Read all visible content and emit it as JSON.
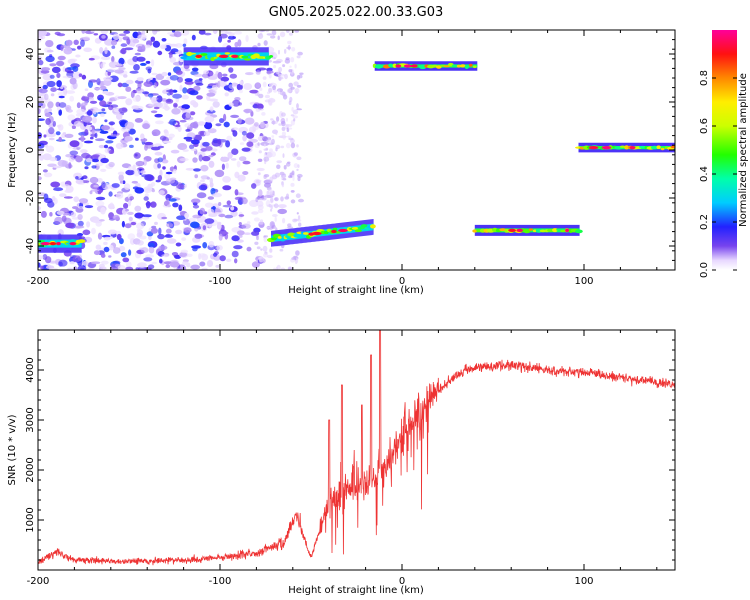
{
  "chart_data": [
    {
      "type": "heatmap",
      "title": "GN05.2025.022.00.33.G03",
      "xlabel": "Height of straight line (km)",
      "ylabel": "Frequency (Hz)",
      "xlim": [
        -200,
        150
      ],
      "ylim": [
        -50,
        50
      ],
      "x_ticks": [
        -200,
        -100,
        0,
        100
      ],
      "y_ticks": [
        -40,
        -20,
        0,
        20,
        40
      ],
      "colorbar": {
        "label": "Normalized spectral amplitude",
        "range": [
          0,
          1
        ],
        "ticks": [
          "0.0",
          "0.2",
          "0.4",
          "0.6",
          "0.8"
        ],
        "colormap": "rainbow (white-purple-blue-cyan-green-yellow-red-magenta)"
      },
      "features": [
        {
          "kind": "noise",
          "x": [
            -200,
            -65
          ],
          "freq": [
            -50,
            50
          ]
        },
        {
          "kind": "band",
          "x": [
            -120,
            -72
          ],
          "freq": [
            36,
            42
          ]
        },
        {
          "kind": "band",
          "x": [
            -200,
            -175
          ],
          "freq": [
            -42,
            -36
          ]
        },
        {
          "kind": "band",
          "x": [
            -72,
            -15
          ],
          "freq_start": -37,
          "freq_end": -32
        },
        {
          "kind": "band",
          "x": [
            -15,
            42
          ],
          "freq": [
            34,
            36
          ]
        },
        {
          "kind": "band",
          "x": [
            40,
            98
          ],
          "freq": [
            -35,
            -32
          ]
        },
        {
          "kind": "band",
          "x": [
            97,
            150
          ],
          "freq": [
            0,
            2
          ]
        }
      ],
      "grid": false
    },
    {
      "type": "line",
      "title": "",
      "xlabel": "Height of straight line (km)",
      "ylabel": "SNR (10 * v/v)",
      "xlim": [
        -200,
        150
      ],
      "ylim": [
        0,
        4800
      ],
      "x_ticks": [
        -200,
        -100,
        0,
        100
      ],
      "y_ticks": [
        1000,
        2000,
        3000,
        4000
      ],
      "series": [
        {
          "color": "#ee3333",
          "trend": [
            {
              "x": -200,
              "y": 150
            },
            {
              "x": -190,
              "y": 350
            },
            {
              "x": -180,
              "y": 200
            },
            {
              "x": -150,
              "y": 170
            },
            {
              "x": -120,
              "y": 200
            },
            {
              "x": -100,
              "y": 250
            },
            {
              "x": -80,
              "y": 350
            },
            {
              "x": -65,
              "y": 550
            },
            {
              "x": -58,
              "y": 1100
            },
            {
              "x": -50,
              "y": 250
            },
            {
              "x": -40,
              "y": 1400
            },
            {
              "x": -30,
              "y": 1600
            },
            {
              "x": -20,
              "y": 1700
            },
            {
              "x": -10,
              "y": 2000
            },
            {
              "x": 0,
              "y": 2700
            },
            {
              "x": 10,
              "y": 3100
            },
            {
              "x": 20,
              "y": 3600
            },
            {
              "x": 30,
              "y": 3900
            },
            {
              "x": 40,
              "y": 4050
            },
            {
              "x": 60,
              "y": 4100
            },
            {
              "x": 80,
              "y": 4000
            },
            {
              "x": 100,
              "y": 3950
            },
            {
              "x": 120,
              "y": 3850
            },
            {
              "x": 140,
              "y": 3750
            },
            {
              "x": 150,
              "y": 3700
            }
          ],
          "peaks": [
            {
              "x": -12,
              "y": 4800
            },
            {
              "x": -17,
              "y": 4300
            },
            {
              "x": -22,
              "y": 3300
            },
            {
              "x": -40,
              "y": 3000
            },
            {
              "x": -33,
              "y": 3700
            }
          ]
        }
      ],
      "grid": false
    }
  ]
}
